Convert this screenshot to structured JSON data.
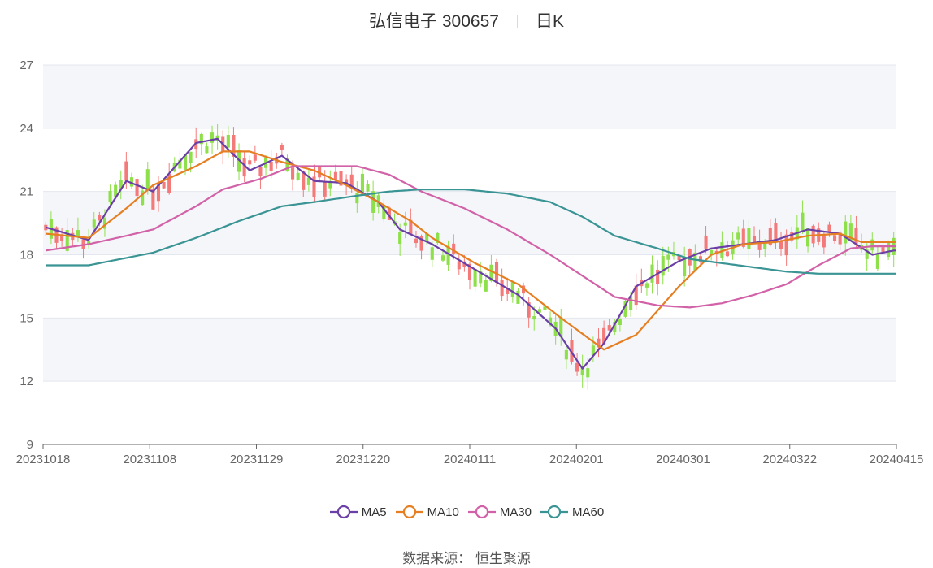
{
  "header": {
    "stock": "弘信电子 300657",
    "period": "日K"
  },
  "legend": [
    {
      "name": "MA5",
      "color": "#6a3fa6"
    },
    {
      "name": "MA10",
      "color": "#e67e22"
    },
    {
      "name": "MA30",
      "color": "#d262a8"
    },
    {
      "name": "MA60",
      "color": "#3a9494"
    }
  ],
  "source": "数据来源： 恒生聚源",
  "chart_data": {
    "type": "candlestick",
    "ylim": [
      9,
      27
    ],
    "yticks": [
      9,
      12,
      15,
      18,
      21,
      24,
      27
    ],
    "xticks": [
      "20231018",
      "20231108",
      "20231129",
      "20231220",
      "20240111",
      "20240201",
      "20240301",
      "20240322",
      "20240415"
    ],
    "up_color": "#f47a7a",
    "down_color": "#8ee04a",
    "ma": {
      "MA5": [
        [
          0,
          19.3
        ],
        [
          8,
          18.7
        ],
        [
          15,
          21.5
        ],
        [
          20,
          21.0
        ],
        [
          28,
          23.3
        ],
        [
          32,
          23.5
        ],
        [
          38,
          22.0
        ],
        [
          44,
          22.7
        ],
        [
          50,
          21.5
        ],
        [
          56,
          21.4
        ],
        [
          62,
          20.5
        ],
        [
          66,
          19.2
        ],
        [
          72,
          18.5
        ],
        [
          80,
          17.3
        ],
        [
          88,
          16.1
        ],
        [
          95,
          14.5
        ],
        [
          100,
          12.6
        ],
        [
          104,
          13.8
        ],
        [
          110,
          16.5
        ],
        [
          118,
          17.7
        ],
        [
          124,
          18.3
        ],
        [
          130,
          18.5
        ],
        [
          136,
          18.7
        ],
        [
          142,
          19.2
        ],
        [
          148,
          19.0
        ],
        [
          154,
          18.0
        ],
        [
          158,
          18.2
        ]
      ],
      "MA10": [
        [
          0,
          19.0
        ],
        [
          8,
          18.8
        ],
        [
          15,
          20.2
        ],
        [
          20,
          21.3
        ],
        [
          28,
          22.2
        ],
        [
          33,
          22.9
        ],
        [
          38,
          22.9
        ],
        [
          44,
          22.4
        ],
        [
          50,
          22.0
        ],
        [
          56,
          21.3
        ],
        [
          62,
          20.5
        ],
        [
          68,
          19.6
        ],
        [
          72,
          18.8
        ],
        [
          80,
          17.6
        ],
        [
          88,
          16.6
        ],
        [
          96,
          15.0
        ],
        [
          104,
          13.5
        ],
        [
          110,
          14.2
        ],
        [
          118,
          16.5
        ],
        [
          124,
          18.0
        ],
        [
          130,
          18.5
        ],
        [
          136,
          18.6
        ],
        [
          142,
          18.9
        ],
        [
          148,
          19.0
        ],
        [
          152,
          18.6
        ],
        [
          158,
          18.6
        ]
      ],
      "MA30": [
        [
          0,
          18.2
        ],
        [
          8,
          18.5
        ],
        [
          15,
          18.9
        ],
        [
          20,
          19.2
        ],
        [
          28,
          20.3
        ],
        [
          33,
          21.1
        ],
        [
          40,
          21.6
        ],
        [
          46,
          22.2
        ],
        [
          52,
          22.2
        ],
        [
          58,
          22.2
        ],
        [
          64,
          21.8
        ],
        [
          70,
          21.0
        ],
        [
          78,
          20.2
        ],
        [
          86,
          19.2
        ],
        [
          94,
          18.0
        ],
        [
          100,
          17.0
        ],
        [
          106,
          16.0
        ],
        [
          114,
          15.6
        ],
        [
          120,
          15.5
        ],
        [
          126,
          15.7
        ],
        [
          132,
          16.1
        ],
        [
          138,
          16.6
        ],
        [
          144,
          17.5
        ],
        [
          150,
          18.3
        ],
        [
          154,
          18.4
        ],
        [
          158,
          18.4
        ]
      ],
      "MA60": [
        [
          0,
          17.5
        ],
        [
          8,
          17.5
        ],
        [
          14,
          17.8
        ],
        [
          20,
          18.1
        ],
        [
          28,
          18.8
        ],
        [
          36,
          19.6
        ],
        [
          44,
          20.3
        ],
        [
          50,
          20.5
        ],
        [
          58,
          20.8
        ],
        [
          64,
          21.0
        ],
        [
          70,
          21.1
        ],
        [
          78,
          21.1
        ],
        [
          86,
          20.9
        ],
        [
          94,
          20.5
        ],
        [
          100,
          19.8
        ],
        [
          106,
          18.9
        ],
        [
          114,
          18.3
        ],
        [
          120,
          17.8
        ],
        [
          126,
          17.6
        ],
        [
          132,
          17.4
        ],
        [
          138,
          17.2
        ],
        [
          144,
          17.1
        ],
        [
          150,
          17.1
        ],
        [
          158,
          17.1
        ]
      ]
    }
  }
}
